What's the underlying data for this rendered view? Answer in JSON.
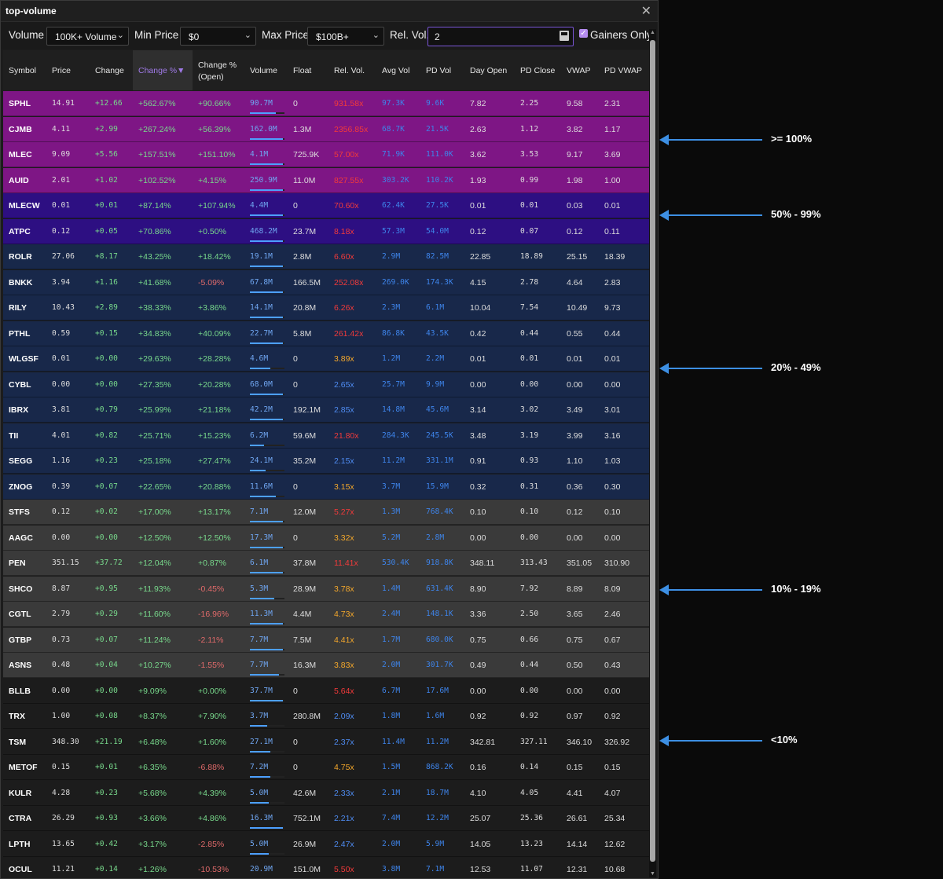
{
  "window": {
    "title": "top-volume"
  },
  "filters": {
    "volume_label": "Volume",
    "volume_value": "100K+ Volume",
    "min_price_label": "Min Price",
    "min_price_value": "$0",
    "max_price_label": "Max Price",
    "max_price_value": "$100B+",
    "rel_vol_label": "Rel. Vol.",
    "rel_vol_value": "2",
    "gainers_only_label": "Gainers Only",
    "gainers_only_checked": true
  },
  "columns": [
    {
      "key": "symbol",
      "label": "Symbol"
    },
    {
      "key": "price",
      "label": "Price"
    },
    {
      "key": "change",
      "label": "Change"
    },
    {
      "key": "chg_pct",
      "label": "Change %▼"
    },
    {
      "key": "chg_open",
      "label": "Change %\n(Open)"
    },
    {
      "key": "volume",
      "label": "Volume"
    },
    {
      "key": "float",
      "label": "Float"
    },
    {
      "key": "rel_vol",
      "label": "Rel. Vol."
    },
    {
      "key": "avg_vol",
      "label": "Avg Vol"
    },
    {
      "key": "pd_vol",
      "label": "PD Vol"
    },
    {
      "key": "day_open",
      "label": "Day Open"
    },
    {
      "key": "pd_close",
      "label": "PD Close"
    },
    {
      "key": "vwap",
      "label": "VWAP"
    },
    {
      "key": "pd_vwap",
      "label": "PD VWAP"
    }
  ],
  "colors": {
    "tier_100": "#7e1685",
    "tier_50": "#2d0f82",
    "tier_20": "#18284a",
    "tier_10": "#3a3a3a",
    "tier_0": "#1c1c1c"
  },
  "rows": [
    {
      "tier": "tier_100",
      "symbol": "SPHL",
      "price": "14.91",
      "change": "+12.66",
      "chg_pct": "+562.67%",
      "chg_open": "+90.66%",
      "volume": "90.7M",
      "vbar": 0.75,
      "float": "0",
      "rel_vol": "931.58x",
      "rv": "red",
      "avg_vol": "97.3K",
      "pd_vol": "9.6K",
      "day_open": "7.82",
      "pd_close": "2.25",
      "vwap": "9.58",
      "pd_vwap": "2.31"
    },
    {
      "tier": "tier_100",
      "symbol": "CJMB",
      "price": "4.11",
      "change": "+2.99",
      "chg_pct": "+267.24%",
      "chg_open": "+56.39%",
      "volume": "162.0M",
      "vbar": 0.95,
      "float": "1.3M",
      "rel_vol": "2356.85x",
      "rv": "red",
      "avg_vol": "68.7K",
      "pd_vol": "21.5K",
      "day_open": "2.63",
      "pd_close": "1.12",
      "vwap": "3.82",
      "pd_vwap": "1.17"
    },
    {
      "tier": "tier_100",
      "symbol": "MLEC",
      "price": "9.09",
      "change": "+5.56",
      "chg_pct": "+157.51%",
      "chg_open": "+151.10%",
      "volume": "4.1M",
      "vbar": 0.95,
      "float": "725.9K",
      "rel_vol": "57.00x",
      "rv": "red",
      "avg_vol": "71.9K",
      "pd_vol": "111.0K",
      "day_open": "3.62",
      "pd_close": "3.53",
      "vwap": "9.17",
      "pd_vwap": "3.69"
    },
    {
      "tier": "tier_100",
      "symbol": "AUID",
      "price": "2.01",
      "change": "+1.02",
      "chg_pct": "+102.52%",
      "chg_open": "+4.15%",
      "volume": "250.9M",
      "vbar": 0.95,
      "float": "11.0M",
      "rel_vol": "827.55x",
      "rv": "red",
      "avg_vol": "303.2K",
      "pd_vol": "110.2K",
      "day_open": "1.93",
      "pd_close": "0.99",
      "vwap": "1.98",
      "pd_vwap": "1.00"
    },
    {
      "tier": "tier_50",
      "symbol": "MLECW",
      "price": "0.01",
      "change": "+0.01",
      "chg_pct": "+87.14%",
      "chg_open": "+107.94%",
      "volume": "4.4M",
      "vbar": 0.95,
      "float": "0",
      "rel_vol": "70.60x",
      "rv": "red",
      "avg_vol": "62.4K",
      "pd_vol": "27.5K",
      "day_open": "0.01",
      "pd_close": "0.01",
      "vwap": "0.03",
      "pd_vwap": "0.01"
    },
    {
      "tier": "tier_50",
      "symbol": "ATPC",
      "price": "0.12",
      "change": "+0.05",
      "chg_pct": "+70.86%",
      "chg_open": "+0.50%",
      "volume": "468.2M",
      "vbar": 0.95,
      "float": "23.7M",
      "rel_vol": "8.18x",
      "rv": "red",
      "avg_vol": "57.3M",
      "pd_vol": "54.0M",
      "day_open": "0.12",
      "pd_close": "0.07",
      "vwap": "0.12",
      "pd_vwap": "0.11"
    },
    {
      "tier": "tier_20",
      "symbol": "ROLR",
      "price": "27.06",
      "change": "+8.17",
      "chg_pct": "+43.25%",
      "chg_open": "+18.42%",
      "volume": "19.1M",
      "vbar": 0.95,
      "float": "2.8M",
      "rel_vol": "6.60x",
      "rv": "red",
      "avg_vol": "2.9M",
      "pd_vol": "82.5M",
      "day_open": "22.85",
      "pd_close": "18.89",
      "vwap": "25.15",
      "pd_vwap": "18.39"
    },
    {
      "tier": "tier_20",
      "symbol": "BNKK",
      "price": "3.94",
      "change": "+1.16",
      "chg_pct": "+41.68%",
      "chg_open": "-5.09%",
      "volume": "67.8M",
      "vbar": 0.95,
      "float": "166.5M",
      "rel_vol": "252.08x",
      "rv": "red",
      "avg_vol": "269.0K",
      "pd_vol": "174.3K",
      "day_open": "4.15",
      "pd_close": "2.78",
      "vwap": "4.64",
      "pd_vwap": "2.83"
    },
    {
      "tier": "tier_20",
      "symbol": "RILY",
      "price": "10.43",
      "change": "+2.89",
      "chg_pct": "+38.33%",
      "chg_open": "+3.86%",
      "volume": "14.1M",
      "vbar": 0.95,
      "float": "20.8M",
      "rel_vol": "6.26x",
      "rv": "red",
      "avg_vol": "2.3M",
      "pd_vol": "6.1M",
      "day_open": "10.04",
      "pd_close": "7.54",
      "vwap": "10.49",
      "pd_vwap": "9.73"
    },
    {
      "tier": "tier_20",
      "symbol": "PTHL",
      "price": "0.59",
      "change": "+0.15",
      "chg_pct": "+34.83%",
      "chg_open": "+40.09%",
      "volume": "22.7M",
      "vbar": 0.95,
      "float": "5.8M",
      "rel_vol": "261.42x",
      "rv": "red",
      "avg_vol": "86.8K",
      "pd_vol": "43.5K",
      "day_open": "0.42",
      "pd_close": "0.44",
      "vwap": "0.55",
      "pd_vwap": "0.44"
    },
    {
      "tier": "tier_20",
      "symbol": "WLGSF",
      "price": "0.01",
      "change": "+0.00",
      "chg_pct": "+29.63%",
      "chg_open": "+28.28%",
      "volume": "4.6M",
      "vbar": 0.6,
      "float": "0",
      "rel_vol": "3.89x",
      "rv": "orange",
      "avg_vol": "1.2M",
      "pd_vol": "2.2M",
      "day_open": "0.01",
      "pd_close": "0.01",
      "vwap": "0.01",
      "pd_vwap": "0.01"
    },
    {
      "tier": "tier_20",
      "symbol": "CYBL",
      "price": "0.00",
      "change": "+0.00",
      "chg_pct": "+27.35%",
      "chg_open": "+20.28%",
      "volume": "68.0M",
      "vbar": 0.95,
      "float": "0",
      "rel_vol": "2.65x",
      "rv": "blue",
      "avg_vol": "25.7M",
      "pd_vol": "9.9M",
      "day_open": "0.00",
      "pd_close": "0.00",
      "vwap": "0.00",
      "pd_vwap": "0.00"
    },
    {
      "tier": "tier_20",
      "symbol": "IBRX",
      "price": "3.81",
      "change": "+0.79",
      "chg_pct": "+25.99%",
      "chg_open": "+21.18%",
      "volume": "42.2M",
      "vbar": 0.95,
      "float": "192.1M",
      "rel_vol": "2.85x",
      "rv": "blue",
      "avg_vol": "14.8M",
      "pd_vol": "45.6M",
      "day_open": "3.14",
      "pd_close": "3.02",
      "vwap": "3.49",
      "pd_vwap": "3.01"
    },
    {
      "tier": "tier_20",
      "symbol": "TII",
      "price": "4.01",
      "change": "+0.82",
      "chg_pct": "+25.71%",
      "chg_open": "+15.23%",
      "volume": "6.2M",
      "vbar": 0.4,
      "float": "59.6M",
      "rel_vol": "21.80x",
      "rv": "red",
      "avg_vol": "284.3K",
      "pd_vol": "245.5K",
      "day_open": "3.48",
      "pd_close": "3.19",
      "vwap": "3.99",
      "pd_vwap": "3.16"
    },
    {
      "tier": "tier_20",
      "symbol": "SEGG",
      "price": "1.16",
      "change": "+0.23",
      "chg_pct": "+25.18%",
      "chg_open": "+27.47%",
      "volume": "24.1M",
      "vbar": 0.45,
      "float": "35.2M",
      "rel_vol": "2.15x",
      "rv": "blue",
      "avg_vol": "11.2M",
      "pd_vol": "331.1M",
      "day_open": "0.91",
      "pd_close": "0.93",
      "vwap": "1.10",
      "pd_vwap": "1.03"
    },
    {
      "tier": "tier_20",
      "symbol": "ZNOG",
      "price": "0.39",
      "change": "+0.07",
      "chg_pct": "+22.65%",
      "chg_open": "+20.88%",
      "volume": "11.6M",
      "vbar": 0.75,
      "float": "0",
      "rel_vol": "3.15x",
      "rv": "orange",
      "avg_vol": "3.7M",
      "pd_vol": "15.9M",
      "day_open": "0.32",
      "pd_close": "0.31",
      "vwap": "0.36",
      "pd_vwap": "0.30"
    },
    {
      "tier": "tier_10",
      "symbol": "STFS",
      "price": "0.12",
      "change": "+0.02",
      "chg_pct": "+17.00%",
      "chg_open": "+13.17%",
      "volume": "7.1M",
      "vbar": 0.95,
      "float": "12.0M",
      "rel_vol": "5.27x",
      "rv": "red",
      "avg_vol": "1.3M",
      "pd_vol": "768.4K",
      "day_open": "0.10",
      "pd_close": "0.10",
      "vwap": "0.12",
      "pd_vwap": "0.10"
    },
    {
      "tier": "tier_10",
      "symbol": "AAGC",
      "price": "0.00",
      "change": "+0.00",
      "chg_pct": "+12.50%",
      "chg_open": "+12.50%",
      "volume": "17.3M",
      "vbar": 0.95,
      "float": "0",
      "rel_vol": "3.32x",
      "rv": "orange",
      "avg_vol": "5.2M",
      "pd_vol": "2.8M",
      "day_open": "0.00",
      "pd_close": "0.00",
      "vwap": "0.00",
      "pd_vwap": "0.00"
    },
    {
      "tier": "tier_10",
      "symbol": "PEN",
      "price": "351.15",
      "change": "+37.72",
      "chg_pct": "+12.04%",
      "chg_open": "+0.87%",
      "volume": "6.1M",
      "vbar": 0.95,
      "float": "37.8M",
      "rel_vol": "11.41x",
      "rv": "red",
      "avg_vol": "530.4K",
      "pd_vol": "918.8K",
      "day_open": "348.11",
      "pd_close": "313.43",
      "vwap": "351.05",
      "pd_vwap": "310.90"
    },
    {
      "tier": "tier_10",
      "symbol": "SHCO",
      "price": "8.87",
      "change": "+0.95",
      "chg_pct": "+11.93%",
      "chg_open": "-0.45%",
      "volume": "5.3M",
      "vbar": 0.7,
      "float": "28.9M",
      "rel_vol": "3.78x",
      "rv": "orange",
      "avg_vol": "1.4M",
      "pd_vol": "631.4K",
      "day_open": "8.90",
      "pd_close": "7.92",
      "vwap": "8.89",
      "pd_vwap": "8.09"
    },
    {
      "tier": "tier_10",
      "symbol": "CGTL",
      "price": "2.79",
      "change": "+0.29",
      "chg_pct": "+11.60%",
      "chg_open": "-16.96%",
      "volume": "11.3M",
      "vbar": 0.95,
      "float": "4.4M",
      "rel_vol": "4.73x",
      "rv": "orange",
      "avg_vol": "2.4M",
      "pd_vol": "148.1K",
      "day_open": "3.36",
      "pd_close": "2.50",
      "vwap": "3.65",
      "pd_vwap": "2.46"
    },
    {
      "tier": "tier_10",
      "symbol": "GTBP",
      "price": "0.73",
      "change": "+0.07",
      "chg_pct": "+11.24%",
      "chg_open": "-2.11%",
      "volume": "7.7M",
      "vbar": 0.95,
      "float": "7.5M",
      "rel_vol": "4.41x",
      "rv": "orange",
      "avg_vol": "1.7M",
      "pd_vol": "680.0K",
      "day_open": "0.75",
      "pd_close": "0.66",
      "vwap": "0.75",
      "pd_vwap": "0.67"
    },
    {
      "tier": "tier_10",
      "symbol": "ASNS",
      "price": "0.48",
      "change": "+0.04",
      "chg_pct": "+10.27%",
      "chg_open": "-1.55%",
      "volume": "7.7M",
      "vbar": 0.85,
      "float": "16.3M",
      "rel_vol": "3.83x",
      "rv": "orange",
      "avg_vol": "2.0M",
      "pd_vol": "301.7K",
      "day_open": "0.49",
      "pd_close": "0.44",
      "vwap": "0.50",
      "pd_vwap": "0.43"
    },
    {
      "tier": "tier_0",
      "symbol": "BLLB",
      "price": "0.00",
      "change": "+0.00",
      "chg_pct": "+9.09%",
      "chg_open": "+0.00%",
      "volume": "37.7M",
      "vbar": 0.95,
      "float": "0",
      "rel_vol": "5.64x",
      "rv": "red",
      "avg_vol": "6.7M",
      "pd_vol": "17.6M",
      "day_open": "0.00",
      "pd_close": "0.00",
      "vwap": "0.00",
      "pd_vwap": "0.00"
    },
    {
      "tier": "tier_0",
      "symbol": "TRX",
      "price": "1.00",
      "change": "+0.08",
      "chg_pct": "+8.37%",
      "chg_open": "+7.90%",
      "volume": "3.7M",
      "vbar": 0.5,
      "float": "280.8M",
      "rel_vol": "2.09x",
      "rv": "blue",
      "avg_vol": "1.8M",
      "pd_vol": "1.6M",
      "day_open": "0.92",
      "pd_close": "0.92",
      "vwap": "0.97",
      "pd_vwap": "0.92"
    },
    {
      "tier": "tier_0",
      "symbol": "TSM",
      "price": "348.30",
      "change": "+21.19",
      "chg_pct": "+6.48%",
      "chg_open": "+1.60%",
      "volume": "27.1M",
      "vbar": 0.6,
      "float": "0",
      "rel_vol": "2.37x",
      "rv": "blue",
      "avg_vol": "11.4M",
      "pd_vol": "11.2M",
      "day_open": "342.81",
      "pd_close": "327.11",
      "vwap": "346.10",
      "pd_vwap": "326.92"
    },
    {
      "tier": "tier_0",
      "symbol": "METOF",
      "price": "0.15",
      "change": "+0.01",
      "chg_pct": "+6.35%",
      "chg_open": "-6.88%",
      "volume": "7.2M",
      "vbar": 0.6,
      "float": "0",
      "rel_vol": "4.75x",
      "rv": "orange",
      "avg_vol": "1.5M",
      "pd_vol": "868.2K",
      "day_open": "0.16",
      "pd_close": "0.14",
      "vwap": "0.15",
      "pd_vwap": "0.15"
    },
    {
      "tier": "tier_0",
      "symbol": "KULR",
      "price": "4.28",
      "change": "+0.23",
      "chg_pct": "+5.68%",
      "chg_open": "+4.39%",
      "volume": "5.0M",
      "vbar": 0.55,
      "float": "42.6M",
      "rel_vol": "2.33x",
      "rv": "blue",
      "avg_vol": "2.1M",
      "pd_vol": "18.7M",
      "day_open": "4.10",
      "pd_close": "4.05",
      "vwap": "4.41",
      "pd_vwap": "4.07"
    },
    {
      "tier": "tier_0",
      "symbol": "CTRA",
      "price": "26.29",
      "change": "+0.93",
      "chg_pct": "+3.66%",
      "chg_open": "+4.86%",
      "volume": "16.3M",
      "vbar": 0.95,
      "float": "752.1M",
      "rel_vol": "2.21x",
      "rv": "blue",
      "avg_vol": "7.4M",
      "pd_vol": "12.2M",
      "day_open": "25.07",
      "pd_close": "25.36",
      "vwap": "26.61",
      "pd_vwap": "25.34"
    },
    {
      "tier": "tier_0",
      "symbol": "LPTH",
      "price": "13.65",
      "change": "+0.42",
      "chg_pct": "+3.17%",
      "chg_open": "-2.85%",
      "volume": "5.0M",
      "vbar": 0.55,
      "float": "26.9M",
      "rel_vol": "2.47x",
      "rv": "blue",
      "avg_vol": "2.0M",
      "pd_vol": "5.9M",
      "day_open": "14.05",
      "pd_close": "13.23",
      "vwap": "14.14",
      "pd_vwap": "12.62"
    },
    {
      "tier": "tier_0",
      "symbol": "OCUL",
      "price": "11.21",
      "change": "+0.14",
      "chg_pct": "+1.26%",
      "chg_open": "-10.53%",
      "volume": "20.9M",
      "vbar": 0.95,
      "float": "151.0M",
      "rel_vol": "5.50x",
      "rv": "red",
      "avg_vol": "3.8M",
      "pd_vol": "7.1M",
      "day_open": "12.53",
      "pd_close": "11.07",
      "vwap": "12.31",
      "pd_vwap": "10.68"
    }
  ],
  "annotations": [
    {
      "label": ">= 100%",
      "arrow_icon": "arrow-left-icon"
    },
    {
      "label": "50% - 99%",
      "arrow_icon": "arrow-left-icon"
    },
    {
      "label": "20% - 49%",
      "arrow_icon": "arrow-left-icon"
    },
    {
      "label": "10% - 19%",
      "arrow_icon": "arrow-left-icon"
    },
    {
      "label": "<10%",
      "arrow_icon": "arrow-left-icon"
    }
  ]
}
